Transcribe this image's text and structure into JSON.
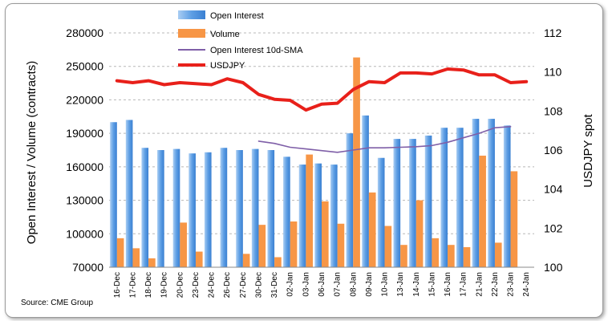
{
  "chart_data": {
    "type": "bar",
    "categories": [
      "16-Dec",
      "17-Dec",
      "18-Dec",
      "19-Dec",
      "20-Dec",
      "23-Dec",
      "24-Dec",
      "26-Dec",
      "27-Dec",
      "30-Dec",
      "31-Dec",
      "02-Jan",
      "03-Jan",
      "06-Jan",
      "07-Jan",
      "08-Jan",
      "09-Jan",
      "10-Jan",
      "13-Jan",
      "14-Jan",
      "15-Jan",
      "16-Jan",
      "17-Jan",
      "21-Jan",
      "22-Jan",
      "23-Jan",
      "24-Jan"
    ],
    "series": [
      {
        "name": "Open Interest",
        "kind": "bar",
        "axis": "left",
        "color": "#5b9bd5",
        "values": [
          200000,
          202000,
          177000,
          175000,
          176000,
          172000,
          173000,
          177000,
          175000,
          176000,
          175000,
          169000,
          162000,
          163000,
          162000,
          190000,
          206000,
          168000,
          185000,
          185000,
          188000,
          195000,
          195000,
          203000,
          203000,
          197000,
          null
        ]
      },
      {
        "name": "Volume",
        "kind": "bar",
        "axis": "left",
        "color": "#f79646",
        "values": [
          96000,
          87000,
          78000,
          null,
          110000,
          84000,
          null,
          null,
          82000,
          108000,
          79000,
          111000,
          171000,
          129000,
          109000,
          258000,
          137000,
          107000,
          90000,
          130000,
          96000,
          90000,
          88000,
          170000,
          92000,
          156000,
          null
        ]
      },
      {
        "name": "Open Interest 10d-SMA",
        "kind": "line",
        "axis": "left",
        "color": "#7f5fa8",
        "values": [
          null,
          null,
          null,
          null,
          null,
          null,
          null,
          null,
          null,
          183000,
          181000,
          177500,
          176000,
          174500,
          173000,
          175000,
          177000,
          177000,
          177500,
          178000,
          179000,
          182000,
          186000,
          190000,
          195000,
          196000,
          null
        ]
      },
      {
        "name": "USDJPY",
        "kind": "line",
        "axis": "right",
        "color": "#e8201a",
        "values": [
          109.55,
          109.45,
          109.55,
          109.35,
          109.45,
          109.4,
          109.35,
          109.65,
          109.45,
          108.85,
          108.6,
          108.55,
          108.05,
          108.35,
          108.4,
          109.1,
          109.5,
          109.45,
          109.95,
          109.95,
          109.9,
          110.15,
          110.1,
          109.85,
          109.85,
          109.45,
          109.5
        ]
      }
    ],
    "ylabel": "Open Interest / Volume (contracts)",
    "y2label": "USDJPY spot",
    "ylim": [
      70000,
      280000
    ],
    "y2lim": [
      100,
      112
    ],
    "yticks": [
      "70000",
      "100000",
      "130000",
      "160000",
      "190000",
      "220000",
      "250000",
      "280000"
    ],
    "y2ticks": [
      "100",
      "102",
      "104",
      "106",
      "108",
      "110",
      "112"
    ],
    "grid": true,
    "legend_position": "top-left"
  },
  "source_text": "Source: CME Group"
}
